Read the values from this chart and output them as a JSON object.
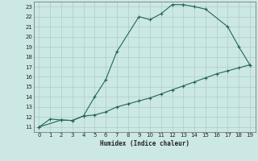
{
  "title": "",
  "xlabel": "Humidex (Indice chaleur)",
  "bg_color": "#cce8e4",
  "grid_color": "#aacccc",
  "line_color": "#226655",
  "xlim": [
    -0.5,
    19.5
  ],
  "ylim": [
    10.5,
    23.5
  ],
  "xticks": [
    0,
    1,
    2,
    3,
    4,
    5,
    6,
    7,
    8,
    9,
    10,
    11,
    12,
    13,
    14,
    15,
    16,
    17,
    18,
    19
  ],
  "yticks": [
    11,
    12,
    13,
    14,
    15,
    16,
    17,
    18,
    19,
    20,
    21,
    22,
    23
  ],
  "curve1_x": [
    0,
    1,
    2,
    3,
    4,
    5,
    6,
    7,
    9,
    10,
    11,
    12,
    13,
    14,
    15,
    17,
    18,
    19
  ],
  "curve1_y": [
    11,
    11.8,
    11.7,
    11.65,
    12.1,
    14.0,
    15.7,
    18.5,
    22.0,
    21.7,
    22.3,
    23.2,
    23.2,
    23.0,
    22.75,
    21.0,
    19.0,
    17.2
  ],
  "curve2_x": [
    0,
    2,
    3,
    4,
    5,
    6,
    7,
    8,
    9,
    10,
    11,
    12,
    13,
    14,
    15,
    16,
    17,
    18,
    19
  ],
  "curve2_y": [
    11,
    11.7,
    11.65,
    12.1,
    12.2,
    12.5,
    13.0,
    13.3,
    13.6,
    13.9,
    14.3,
    14.7,
    15.1,
    15.5,
    15.9,
    16.3,
    16.6,
    16.9,
    17.2
  ]
}
